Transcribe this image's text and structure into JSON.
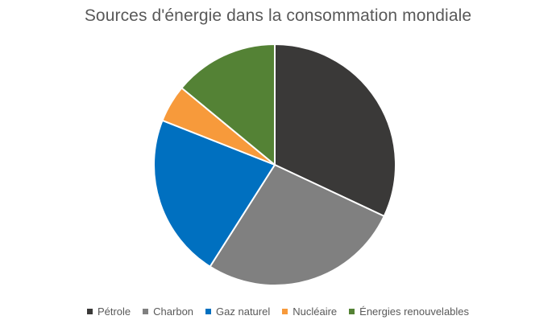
{
  "chart_data": {
    "type": "pie",
    "title": "Sources d'énergie dans la consommation mondiale",
    "start_angle_deg": 0,
    "direction": "clockwise",
    "legend_position": "bottom",
    "slices": [
      {
        "label": "Pétrole",
        "value": 32,
        "color": "#3a3938"
      },
      {
        "label": "Charbon",
        "value": 27,
        "color": "#808080"
      },
      {
        "label": "Gaz naturel",
        "value": 22,
        "color": "#0070c0"
      },
      {
        "label": "Nucléaire",
        "value": 5,
        "color": "#f79a3b"
      },
      {
        "label": "Énergies renouvelables",
        "value": 14,
        "color": "#548235"
      }
    ]
  }
}
